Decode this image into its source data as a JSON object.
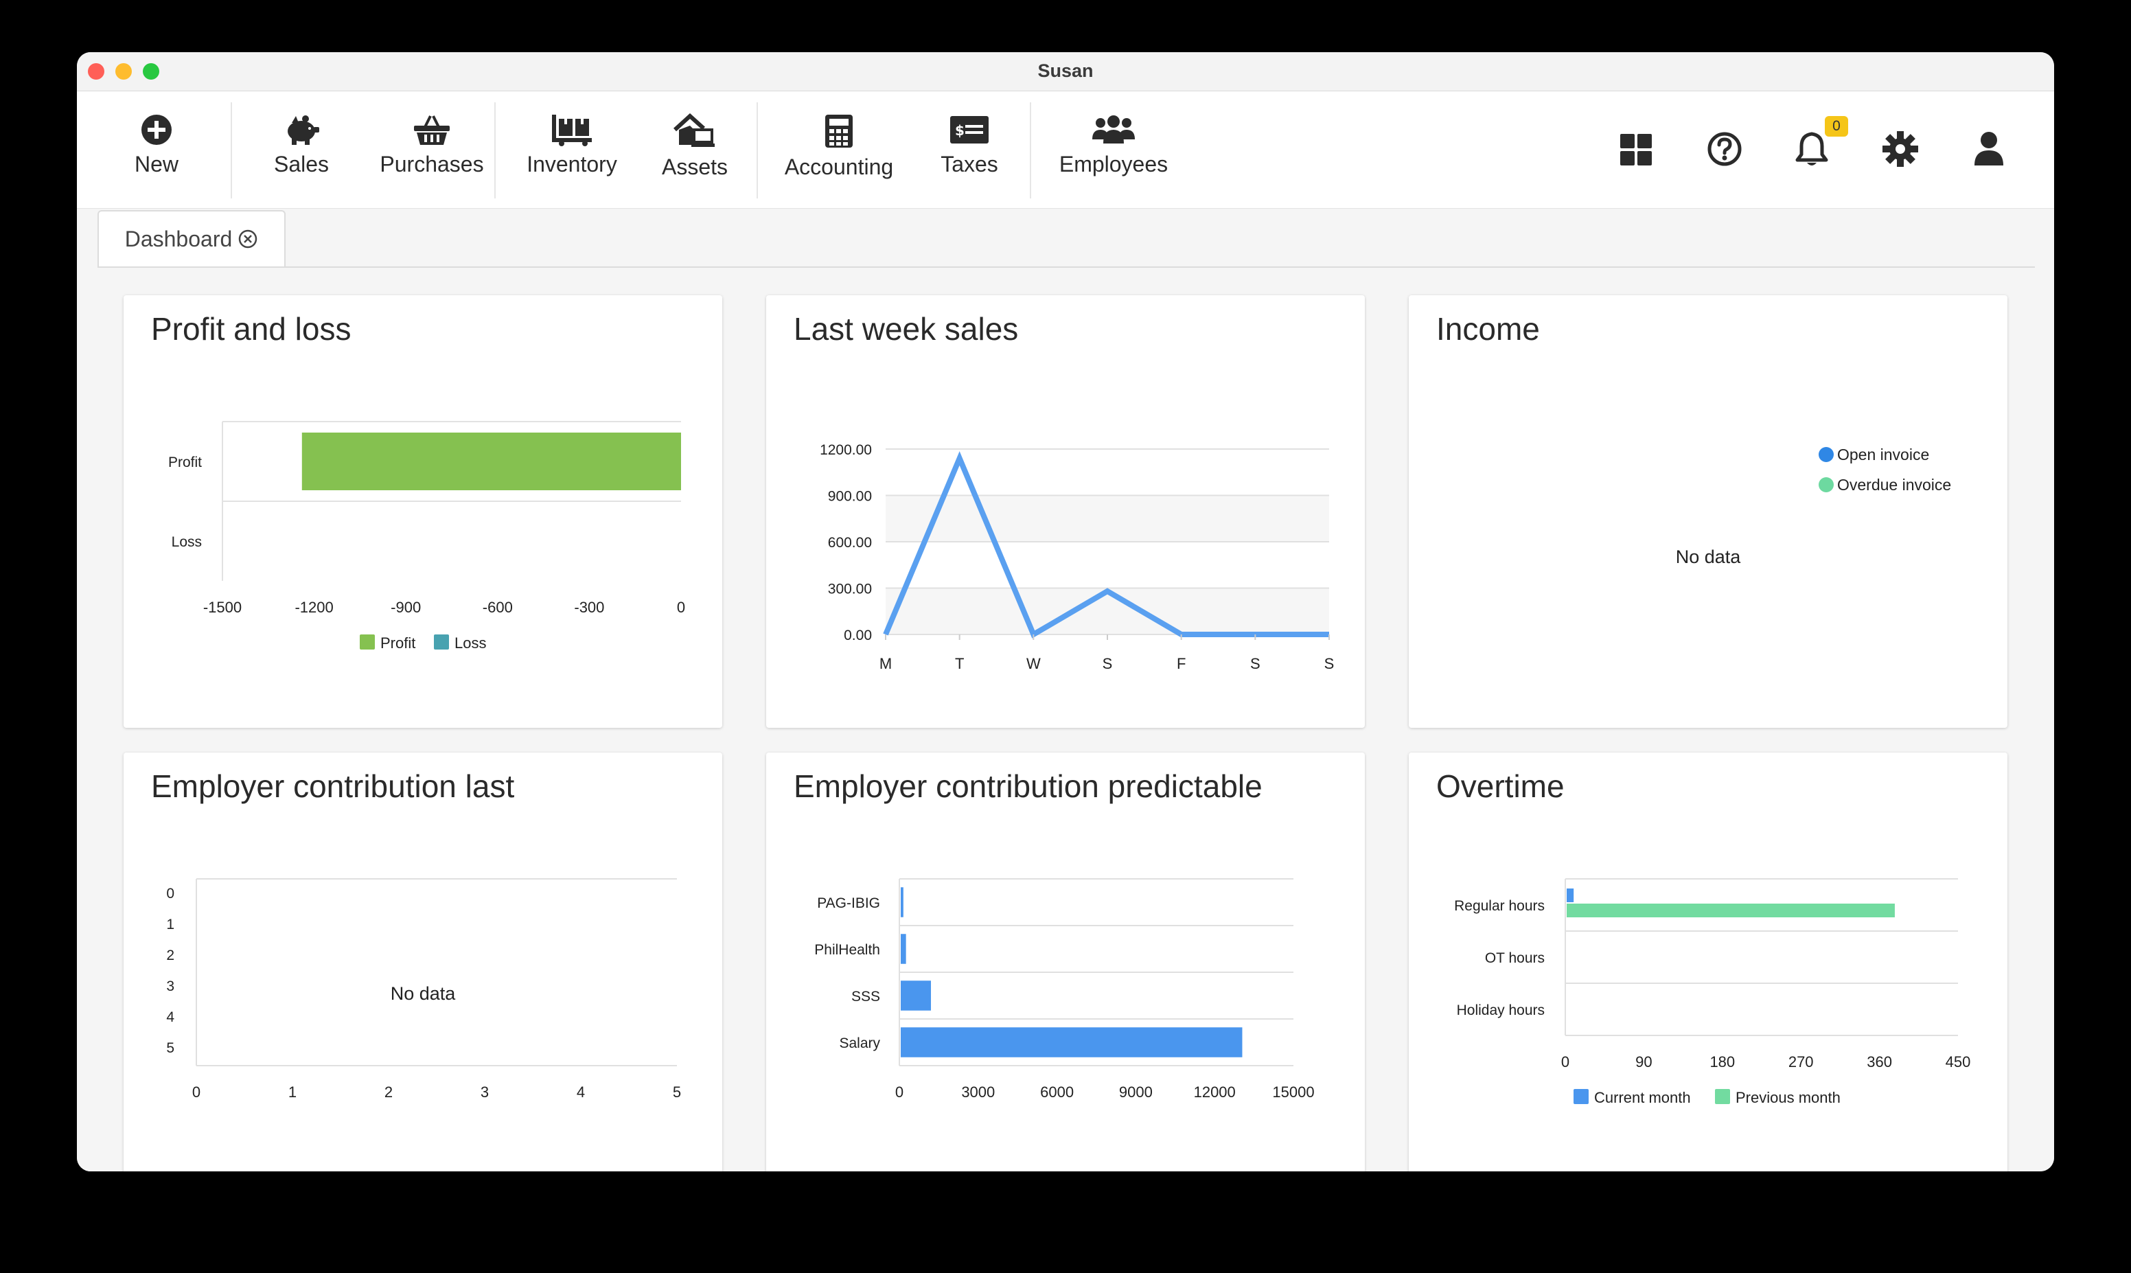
{
  "window": {
    "title": "Susan",
    "traffic_colors": [
      "#ff5f57",
      "#febc2e",
      "#28c840"
    ]
  },
  "toolbar": {
    "items": [
      {
        "label": "New",
        "icon": "plus-circle-icon"
      },
      {
        "label": "Sales",
        "icon": "piggy-bank-icon"
      },
      {
        "label": "Purchases",
        "icon": "shopping-basket-icon"
      },
      {
        "label": "Inventory",
        "icon": "dolly-boxes-icon"
      },
      {
        "label": "Assets",
        "icon": "house-laptop-icon"
      },
      {
        "label": "Accounting",
        "icon": "calculator-icon"
      },
      {
        "label": "Taxes",
        "icon": "money-check-icon"
      },
      {
        "label": "Employees",
        "icon": "users-icon"
      }
    ],
    "right_icons": [
      "grid-icon",
      "help-icon",
      "bell-icon",
      "gear-icon",
      "user-icon"
    ],
    "notification_count": "0"
  },
  "tabs": [
    {
      "label": "Dashboard",
      "icon": "close-circle-icon"
    }
  ],
  "colors": {
    "profit": "#85c150",
    "loss": "#48a2b0",
    "line": "#5aa0f0",
    "bar_blue": "#4a96ee",
    "bar_green": "#72dba0",
    "open_invoice": "#2f87e5",
    "overdue_invoice": "#6dd9a0"
  },
  "cards": [
    {
      "title": "Profit and loss",
      "chart_data": {
        "type": "bar",
        "orientation": "horizontal",
        "categories": [
          "Profit",
          "Loss"
        ],
        "series": [
          {
            "name": "Profit",
            "values": [
              -1240,
              0
            ]
          },
          {
            "name": "Loss",
            "values": [
              0,
              0
            ]
          }
        ],
        "xticks": [
          "-1500",
          "-1200",
          "-900",
          "-600",
          "-300",
          "0"
        ],
        "xlim": [
          -1500,
          0
        ],
        "legend": "bottom"
      }
    },
    {
      "title": "Last week sales",
      "chart_data": {
        "type": "line",
        "categories": [
          "M",
          "T",
          "W",
          "S",
          "F",
          "S",
          "S"
        ],
        "values": [
          0,
          1140,
          0,
          280,
          0,
          0,
          0
        ],
        "yticks": [
          "0.00",
          "300.00",
          "600.00",
          "900.00",
          "1200.00"
        ],
        "ylim": [
          0,
          1200
        ]
      }
    },
    {
      "title": "Income",
      "chart_data": {
        "type": "pie",
        "legend_entries": [
          "Open invoice",
          "Overdue invoice"
        ],
        "legend": "top-right",
        "empty_text": "No data"
      }
    },
    {
      "title": "Employer contribution last",
      "chart_data": {
        "type": "bar",
        "orientation": "horizontal",
        "yticks": [
          "0",
          "1",
          "2",
          "3",
          "4",
          "5"
        ],
        "xticks": [
          "0",
          "1",
          "2",
          "3",
          "4",
          "5"
        ],
        "xlim": [
          0,
          5
        ],
        "empty_text": "No data"
      }
    },
    {
      "title": "Employer contribution predictable",
      "chart_data": {
        "type": "bar",
        "orientation": "horizontal",
        "categories": [
          "PAG-IBIG",
          "PhilHealth",
          "SSS",
          "Salary"
        ],
        "values": [
          100,
          200,
          1150,
          13000
        ],
        "xticks": [
          "0",
          "3000",
          "6000",
          "9000",
          "12000",
          "15000"
        ],
        "xlim": [
          0,
          15000
        ]
      }
    },
    {
      "title": "Overtime",
      "chart_data": {
        "type": "bar",
        "orientation": "horizontal",
        "categories": [
          "Regular hours",
          "OT hours",
          "Holiday hours"
        ],
        "series": [
          {
            "name": "Current month",
            "values": [
              8,
              0,
              0
            ]
          },
          {
            "name": "Previous month",
            "values": [
              376,
              0,
              0
            ]
          }
        ],
        "xticks": [
          "0",
          "90",
          "180",
          "270",
          "360",
          "450"
        ],
        "xlim": [
          0,
          450
        ],
        "legend": "bottom"
      }
    }
  ]
}
